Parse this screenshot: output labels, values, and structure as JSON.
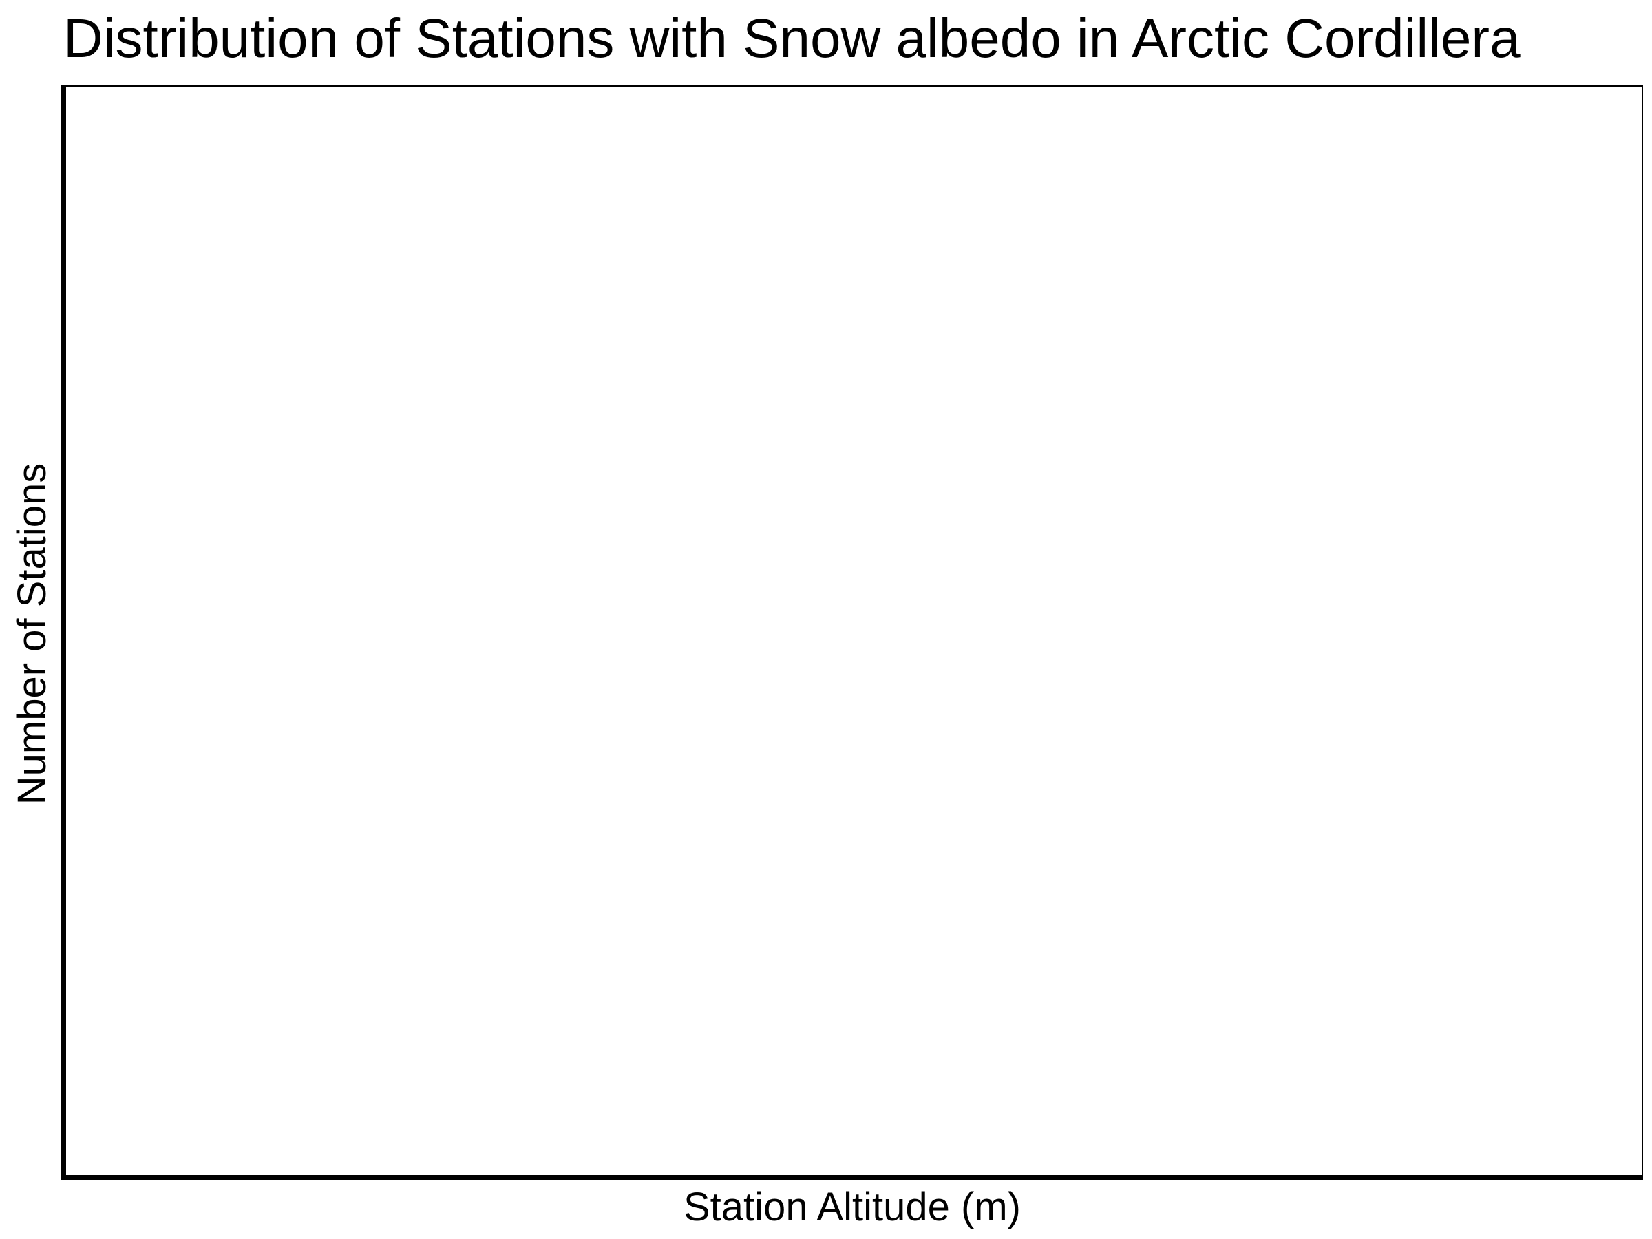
{
  "chart_data": {
    "type": "bar",
    "title": "Distribution of Stations with Snow albedo in Arctic Cordillera",
    "xlabel": "Station Altitude (m)",
    "ylabel": "Number of Stations",
    "categories": [],
    "values": [],
    "grid": false,
    "legend": "none"
  }
}
